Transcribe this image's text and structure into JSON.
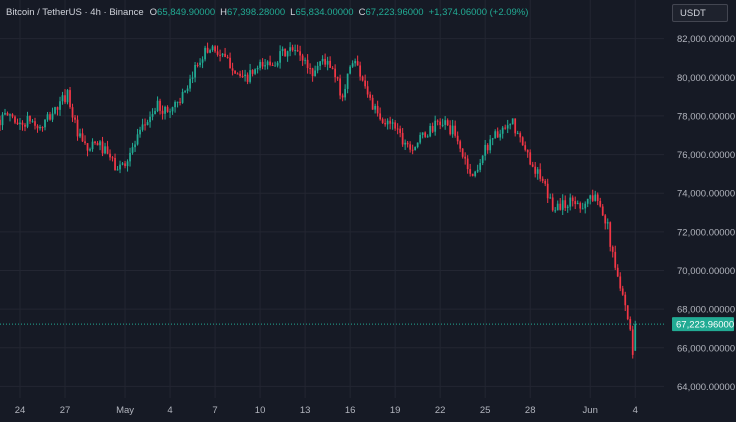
{
  "header": {
    "title": "Bitcoin / TetherUS · 4h · Binance",
    "open_label": "O",
    "open": "65,849.90000",
    "high_label": "H",
    "high": "67,398.28000",
    "low_label": "L",
    "low": "65,834.00000",
    "close_label": "C",
    "close": "67,223.96000",
    "change": "+1,374.06000 (+2.09%)"
  },
  "currency_button": "USDT",
  "last_price_label": "67,223.96000",
  "colors": {
    "background": "#161a25",
    "up": "#22ab94",
    "down": "#f23645",
    "grid": "#232632",
    "axis_text": "#b2b5be"
  },
  "chart_data": {
    "type": "candlestick",
    "title": "Bitcoin / TetherUS · 4h · Binance",
    "xlabel": "",
    "ylabel": "",
    "ylim": [
      63400,
      84000
    ],
    "y_ticks": [
      64000,
      66000,
      68000,
      70000,
      72000,
      74000,
      76000,
      78000,
      80000,
      82000
    ],
    "y_tick_labels": [
      "64,000.00000",
      "66,000.00000",
      "68,000.00000",
      "70,000.00000",
      "72,000.00000",
      "74,000.00000",
      "76,000.00000",
      "78,000.00000",
      "80,000.00000",
      "82,000.00000"
    ],
    "x_tick_labels": [
      "24",
      "27",
      "May",
      "4",
      "7",
      "10",
      "13",
      "16",
      "19",
      "22",
      "25",
      "28",
      "Jun",
      "4"
    ],
    "x_tick_dates": [
      "2024-04-24",
      "2024-04-27",
      "2024-05-01",
      "2024-05-04",
      "2024-05-07",
      "2024-05-10",
      "2024-05-13",
      "2024-05-16",
      "2024-05-19",
      "2024-05-22",
      "2024-05-25",
      "2024-05-28",
      "2024-06-01",
      "2024-06-04"
    ],
    "xlim": [
      "2024-04-22T16:00",
      "2024-06-05T22:00"
    ],
    "interval_hours": 4,
    "last_price": 67223.96,
    "grid": true,
    "legend": "none",
    "anchors": [
      {
        "date": "2024-04-22T16:00",
        "close": 77800
      },
      {
        "date": "2024-04-23T08:00",
        "close": 78100
      },
      {
        "date": "2024-04-24T00:00",
        "close": 77500
      },
      {
        "date": "2024-04-24T16:00",
        "close": 77800
      },
      {
        "date": "2024-04-25T08:00",
        "close": 77300
      },
      {
        "date": "2024-04-26T00:00",
        "close": 78000
      },
      {
        "date": "2024-04-26T16:00",
        "close": 78600
      },
      {
        "date": "2024-04-27T04:00",
        "close": 79200
      },
      {
        "date": "2024-04-27T20:00",
        "close": 77000
      },
      {
        "date": "2024-04-28T12:00",
        "close": 76200
      },
      {
        "date": "2024-04-29T04:00",
        "close": 76600
      },
      {
        "date": "2024-04-29T20:00",
        "close": 76000
      },
      {
        "date": "2024-04-30T12:00",
        "close": 75200
      },
      {
        "date": "2024-05-01T04:00",
        "close": 75800
      },
      {
        "date": "2024-05-01T20:00",
        "close": 76800
      },
      {
        "date": "2024-05-02T12:00",
        "close": 77800
      },
      {
        "date": "2024-05-03T04:00",
        "close": 78500
      },
      {
        "date": "2024-05-03T20:00",
        "close": 78200
      },
      {
        "date": "2024-05-04T12:00",
        "close": 78800
      },
      {
        "date": "2024-05-05T04:00",
        "close": 79200
      },
      {
        "date": "2024-05-05T16:00",
        "close": 80500
      },
      {
        "date": "2024-05-06T04:00",
        "close": 81200
      },
      {
        "date": "2024-05-06T20:00",
        "close": 81600
      },
      {
        "date": "2024-05-07T12:00",
        "close": 81000
      },
      {
        "date": "2024-05-08T04:00",
        "close": 80600
      },
      {
        "date": "2024-05-08T20:00",
        "close": 79800
      },
      {
        "date": "2024-05-09T12:00",
        "close": 80200
      },
      {
        "date": "2024-05-10T04:00",
        "close": 80600
      },
      {
        "date": "2024-05-10T20:00",
        "close": 80800
      },
      {
        "date": "2024-05-11T12:00",
        "close": 81200
      },
      {
        "date": "2024-05-12T04:00",
        "close": 81400
      },
      {
        "date": "2024-05-12T20:00",
        "close": 81000
      },
      {
        "date": "2024-05-13T12:00",
        "close": 80200
      },
      {
        "date": "2024-05-14T04:00",
        "close": 81000
      },
      {
        "date": "2024-05-14T20:00",
        "close": 80300
      },
      {
        "date": "2024-05-15T12:00",
        "close": 79000
      },
      {
        "date": "2024-05-16T04:00",
        "close": 81000
      },
      {
        "date": "2024-05-16T20:00",
        "close": 80000
      },
      {
        "date": "2024-05-17T12:00",
        "close": 78500
      },
      {
        "date": "2024-05-18T04:00",
        "close": 77500
      },
      {
        "date": "2024-05-18T20:00",
        "close": 77800
      },
      {
        "date": "2024-05-19T12:00",
        "close": 76800
      },
      {
        "date": "2024-05-20T04:00",
        "close": 76400
      },
      {
        "date": "2024-05-20T20:00",
        "close": 76900
      },
      {
        "date": "2024-05-21T12:00",
        "close": 77400
      },
      {
        "date": "2024-05-22T04:00",
        "close": 77700
      },
      {
        "date": "2024-05-22T20:00",
        "close": 77200
      },
      {
        "date": "2024-05-23T12:00",
        "close": 76000
      },
      {
        "date": "2024-05-24T04:00",
        "close": 74800
      },
      {
        "date": "2024-05-24T20:00",
        "close": 76000
      },
      {
        "date": "2024-05-25T12:00",
        "close": 77000
      },
      {
        "date": "2024-05-26T04:00",
        "close": 77100
      },
      {
        "date": "2024-05-26T20:00",
        "close": 77600
      },
      {
        "date": "2024-05-27T12:00",
        "close": 76400
      },
      {
        "date": "2024-05-28T04:00",
        "close": 75500
      },
      {
        "date": "2024-05-28T20:00",
        "close": 74500
      },
      {
        "date": "2024-05-29T12:00",
        "close": 73300
      },
      {
        "date": "2024-05-30T04:00",
        "close": 73400
      },
      {
        "date": "2024-05-30T20:00",
        "close": 73600
      },
      {
        "date": "2024-05-31T12:00",
        "close": 73400
      },
      {
        "date": "2024-06-01T00:00",
        "close": 73800
      },
      {
        "date": "2024-06-01T16:00",
        "close": 73600
      },
      {
        "date": "2024-06-02T04:00",
        "close": 72200
      },
      {
        "date": "2024-06-02T16:00",
        "close": 70000
      },
      {
        "date": "2024-06-03T04:00",
        "close": 69000
      },
      {
        "date": "2024-06-03T16:00",
        "close": 66800
      },
      {
        "date": "2024-06-03T20:00",
        "close": 65849.9
      },
      {
        "date": "2024-06-04T00:00",
        "close": 67223.96
      }
    ],
    "last_candle": {
      "date": "2024-06-04T00:00",
      "open": 65849.9,
      "high": 67398.28,
      "low": 65834.0,
      "close": 67223.96
    }
  }
}
